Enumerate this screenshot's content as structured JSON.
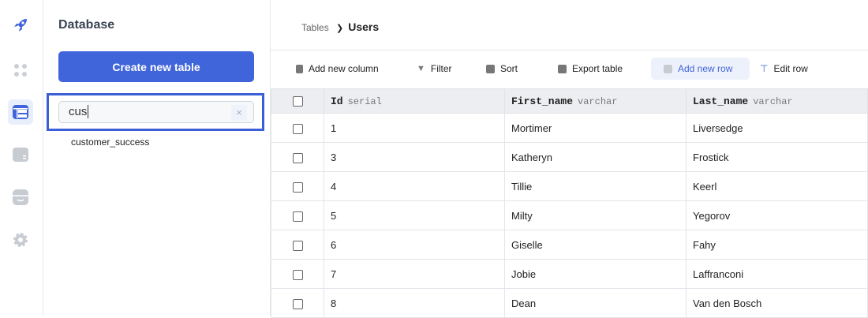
{
  "rail": {
    "items": [
      "rocket-icon",
      "apps-icon",
      "table-icon",
      "wallet-icon",
      "store-icon",
      "gear-icon"
    ],
    "accent": "#4064d9"
  },
  "panel": {
    "title": "Database",
    "create_label": "Create new table",
    "search_value": "cus",
    "clear_label": "×",
    "results": [
      "customer_success"
    ]
  },
  "breadcrumb": {
    "parent": "Tables",
    "separator": "❯",
    "current": "Users"
  },
  "toolbar": {
    "add_column": "Add new column",
    "filter": "Filter",
    "sort": "Sort",
    "export": "Export table",
    "add_row": "Add new row",
    "edit_row": "Edit row"
  },
  "table": {
    "columns": [
      {
        "name": "Id",
        "type": "serial"
      },
      {
        "name": "First_name",
        "type": "varchar"
      },
      {
        "name": "Last_name",
        "type": "varchar"
      }
    ],
    "rows": [
      [
        "1",
        "Mortimer",
        "Liversedge"
      ],
      [
        "3",
        "Katheryn",
        "Frostick"
      ],
      [
        "4",
        "Tillie",
        "Keerl"
      ],
      [
        "5",
        "Milty",
        "Yegorov"
      ],
      [
        "6",
        "Giselle",
        "Fahy"
      ],
      [
        "7",
        "Jobie",
        "Laffranconi"
      ],
      [
        "8",
        "Dean",
        "Van den Bosch"
      ]
    ]
  }
}
